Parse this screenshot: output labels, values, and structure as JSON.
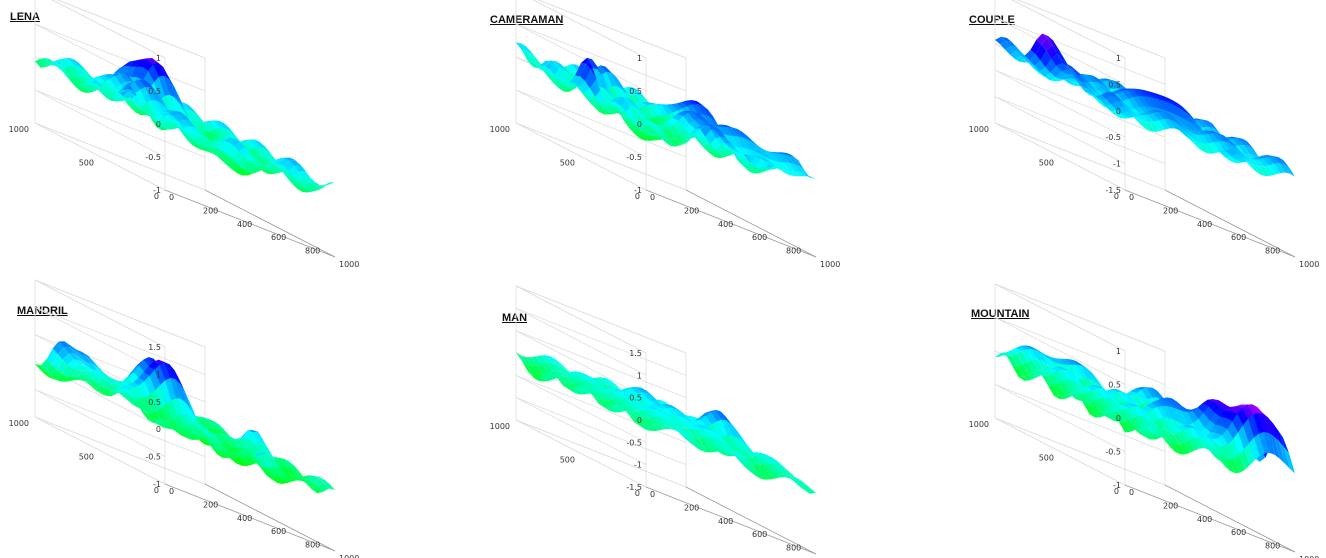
{
  "chart_data": [
    {
      "type": "surface",
      "title": "LENA",
      "zlim": [
        -1,
        1
      ],
      "z_ticks": [
        "1",
        "0.5",
        "0",
        "-0.5",
        "-1"
      ],
      "x_ticks": [
        "0",
        "200",
        "400",
        "600",
        "800",
        "1000"
      ],
      "y_ticks": [
        "1000",
        "500",
        "0"
      ],
      "xlim": [
        0,
        1000
      ],
      "ylim": [
        0,
        1000
      ],
      "colormap": "hsv",
      "grid": true
    },
    {
      "type": "surface",
      "title": "CAMERAMAN",
      "zlim": [
        -1,
        1
      ],
      "z_ticks": [
        "1",
        "0.5",
        "0",
        "-0.5",
        "-1"
      ],
      "x_ticks": [
        "0",
        "200",
        "400",
        "600",
        "800",
        "1000"
      ],
      "y_ticks": [
        "1000",
        "500",
        "0"
      ],
      "xlim": [
        0,
        1000
      ],
      "ylim": [
        0,
        1000
      ],
      "colormap": "hsv",
      "grid": true
    },
    {
      "type": "surface",
      "title": "COUPLE",
      "zlim": [
        -1.5,
        1
      ],
      "z_ticks": [
        "1",
        "0.5",
        "0",
        "-0.5",
        "-1",
        "-1.5"
      ],
      "x_ticks": [
        "0",
        "200",
        "400",
        "600",
        "800",
        "1000"
      ],
      "y_ticks": [
        "1000",
        "500",
        "0"
      ],
      "xlim": [
        0,
        1000
      ],
      "ylim": [
        0,
        1000
      ],
      "colormap": "hsv",
      "grid": true
    },
    {
      "type": "surface",
      "title": "MANDRIL",
      "zlim": [
        -1,
        1.5
      ],
      "z_ticks": [
        "1.5",
        "1",
        "0.5",
        "0",
        "-0.5",
        "-1"
      ],
      "x_ticks": [
        "0",
        "200",
        "400",
        "600",
        "800",
        "1000"
      ],
      "y_ticks": [
        "1000",
        "500",
        "0"
      ],
      "xlim": [
        0,
        1000
      ],
      "ylim": [
        0,
        1000
      ],
      "colormap": "hsv",
      "grid": true
    },
    {
      "type": "surface",
      "title": "MAN",
      "zlim": [
        -1.5,
        1.5
      ],
      "z_ticks": [
        "1.5",
        "1",
        "0.5",
        "0",
        "-0.5",
        "-1",
        "-1.5"
      ],
      "x_ticks": [
        "0",
        "200",
        "400",
        "600",
        "800",
        "1000"
      ],
      "y_ticks": [
        "1000",
        "500",
        "0"
      ],
      "xlim": [
        0,
        1000
      ],
      "ylim": [
        0,
        1000
      ],
      "colormap": "hsv",
      "grid": true
    },
    {
      "type": "surface",
      "title": "MOUNTAIN",
      "zlim": [
        -1,
        1
      ],
      "z_ticks": [
        "1",
        "0.5",
        "0",
        "-0.5",
        "-1"
      ],
      "x_ticks": [
        "0",
        "200",
        "400",
        "600",
        "800",
        "1000"
      ],
      "y_ticks": [
        "1000",
        "500",
        "0"
      ],
      "xlim": [
        0,
        1000
      ],
      "ylim": [
        0,
        1000
      ],
      "colormap": "hsv",
      "grid": true
    }
  ]
}
